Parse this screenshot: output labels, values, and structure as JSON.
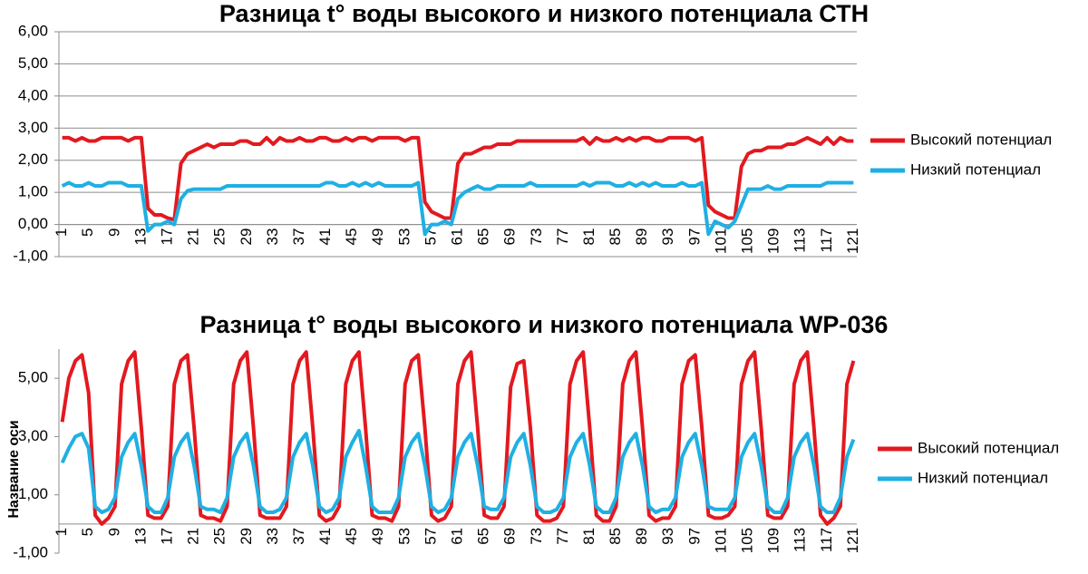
{
  "chart_data": [
    {
      "type": "line",
      "title": "Разница t° воды высокого и низкого потенциала СТН",
      "categories": [
        "1",
        null,
        null,
        null,
        "5",
        null,
        null,
        null,
        "9",
        null,
        null,
        null,
        "13",
        null,
        null,
        null,
        "17",
        null,
        null,
        null,
        "21",
        null,
        null,
        null,
        "25",
        null,
        null,
        null,
        "29",
        null,
        null,
        null,
        "33",
        null,
        null,
        null,
        "37",
        null,
        null,
        null,
        "41",
        null,
        null,
        null,
        "45",
        null,
        null,
        null,
        "49",
        null,
        null,
        null,
        "53",
        null,
        null,
        null,
        "57",
        null,
        null,
        null,
        "61",
        null,
        null,
        null,
        "65",
        null,
        null,
        null,
        "69",
        null,
        null,
        null,
        "73",
        null,
        null,
        null,
        "77",
        null,
        null,
        null,
        "81",
        null,
        null,
        null,
        "85",
        null,
        null,
        null,
        "89",
        null,
        null,
        null,
        "93",
        null,
        null,
        null,
        "97",
        null,
        null,
        null,
        "101",
        null,
        null,
        null,
        "105",
        null,
        null,
        null,
        "109",
        null,
        null,
        null,
        "113",
        null,
        null,
        null,
        "117",
        null,
        null,
        null,
        "121"
      ],
      "series": [
        {
          "name": "Высокий потенциал",
          "color": "#e3191f",
          "values": [
            2.7,
            2.7,
            2.6,
            2.7,
            2.6,
            2.6,
            2.7,
            2.7,
            2.7,
            2.7,
            2.6,
            2.7,
            2.7,
            0.5,
            0.3,
            0.3,
            0.2,
            0.15,
            1.9,
            2.2,
            2.3,
            2.4,
            2.5,
            2.4,
            2.5,
            2.5,
            2.5,
            2.6,
            2.6,
            2.5,
            2.5,
            2.7,
            2.5,
            2.7,
            2.6,
            2.6,
            2.7,
            2.6,
            2.6,
            2.7,
            2.7,
            2.6,
            2.6,
            2.7,
            2.6,
            2.7,
            2.7,
            2.6,
            2.7,
            2.7,
            2.7,
            2.7,
            2.6,
            2.7,
            2.7,
            0.7,
            0.4,
            0.3,
            0.2,
            0.2,
            1.9,
            2.2,
            2.2,
            2.3,
            2.4,
            2.4,
            2.5,
            2.5,
            2.5,
            2.6,
            2.6,
            2.6,
            2.6,
            2.6,
            2.6,
            2.6,
            2.6,
            2.6,
            2.6,
            2.7,
            2.5,
            2.7,
            2.6,
            2.6,
            2.7,
            2.6,
            2.7,
            2.6,
            2.7,
            2.7,
            2.6,
            2.6,
            2.7,
            2.7,
            2.7,
            2.7,
            2.6,
            2.7,
            0.6,
            0.4,
            0.3,
            0.2,
            0.2,
            1.8,
            2.2,
            2.3,
            2.3,
            2.4,
            2.4,
            2.4,
            2.5,
            2.5,
            2.6,
            2.7,
            2.6,
            2.5,
            2.7,
            2.5,
            2.7,
            2.6,
            2.6
          ]
        },
        {
          "name": "Низкий потенциал",
          "color": "#1fb0e3",
          "values": [
            1.2,
            1.3,
            1.2,
            1.2,
            1.3,
            1.2,
            1.2,
            1.3,
            1.3,
            1.3,
            1.2,
            1.2,
            1.2,
            -0.2,
            0.0,
            0.0,
            0.1,
            0.0,
            0.8,
            1.05,
            1.1,
            1.1,
            1.1,
            1.1,
            1.1,
            1.2,
            1.2,
            1.2,
            1.2,
            1.2,
            1.2,
            1.2,
            1.2,
            1.2,
            1.2,
            1.2,
            1.2,
            1.2,
            1.2,
            1.2,
            1.3,
            1.3,
            1.2,
            1.2,
            1.3,
            1.2,
            1.3,
            1.2,
            1.3,
            1.2,
            1.2,
            1.2,
            1.2,
            1.2,
            1.3,
            -0.3,
            0.0,
            0.0,
            0.1,
            0.0,
            0.8,
            1.0,
            1.1,
            1.2,
            1.1,
            1.1,
            1.2,
            1.2,
            1.2,
            1.2,
            1.2,
            1.3,
            1.2,
            1.2,
            1.2,
            1.2,
            1.2,
            1.2,
            1.2,
            1.3,
            1.2,
            1.3,
            1.3,
            1.3,
            1.2,
            1.2,
            1.3,
            1.2,
            1.3,
            1.2,
            1.3,
            1.2,
            1.2,
            1.2,
            1.3,
            1.2,
            1.2,
            1.3,
            -0.3,
            0.1,
            0.0,
            -0.1,
            0.1,
            0.6,
            1.1,
            1.1,
            1.1,
            1.2,
            1.1,
            1.1,
            1.2,
            1.2,
            1.2,
            1.2,
            1.2,
            1.2,
            1.3,
            1.3,
            1.3,
            1.3,
            1.3
          ]
        }
      ],
      "ylim": [
        -1,
        6
      ],
      "yticks": [
        {
          "value": -1,
          "label": "-1,00"
        },
        {
          "value": 0,
          "label": "0,00"
        },
        {
          "value": 1,
          "label": "1,00"
        },
        {
          "value": 2,
          "label": "2,00"
        },
        {
          "value": 3,
          "label": "3,00"
        },
        {
          "value": 4,
          "label": "4,00"
        },
        {
          "value": 5,
          "label": "5,00"
        },
        {
          "value": 6,
          "label": "6,00"
        }
      ],
      "grid": true,
      "legend": "right"
    },
    {
      "type": "line",
      "title": "Разница t° воды высокого и низкого потенциала WP-036",
      "y_label": "Название оси",
      "categories": [
        "1",
        null,
        null,
        null,
        "5",
        null,
        null,
        null,
        "9",
        null,
        null,
        null,
        "13",
        null,
        null,
        null,
        "17",
        null,
        null,
        null,
        "21",
        null,
        null,
        null,
        "25",
        null,
        null,
        null,
        "29",
        null,
        null,
        null,
        "33",
        null,
        null,
        null,
        "37",
        null,
        null,
        null,
        "41",
        null,
        null,
        null,
        "45",
        null,
        null,
        null,
        "49",
        null,
        null,
        null,
        "53",
        null,
        null,
        null,
        "57",
        null,
        null,
        null,
        "61",
        null,
        null,
        null,
        "65",
        null,
        null,
        null,
        "69",
        null,
        null,
        null,
        "73",
        null,
        null,
        null,
        "77",
        null,
        null,
        null,
        "81",
        null,
        null,
        null,
        "85",
        null,
        null,
        null,
        "89",
        null,
        null,
        null,
        "93",
        null,
        null,
        null,
        "97",
        null,
        null,
        null,
        "101",
        null,
        null,
        null,
        "105",
        null,
        null,
        null,
        "109",
        null,
        null,
        null,
        "113",
        null,
        null,
        null,
        "117",
        null,
        null,
        null,
        "121"
      ],
      "series": [
        {
          "name": "Высокий потенциал",
          "color": "#e3191f",
          "values": [
            3.5,
            5.0,
            5.6,
            5.8,
            4.5,
            0.3,
            0.0,
            0.2,
            0.6,
            4.8,
            5.6,
            5.9,
            3.3,
            0.3,
            0.2,
            0.2,
            0.6,
            4.8,
            5.6,
            5.8,
            3.3,
            0.3,
            0.2,
            0.2,
            0.1,
            0.6,
            4.8,
            5.6,
            5.9,
            3.3,
            0.3,
            0.2,
            0.2,
            0.2,
            0.6,
            4.8,
            5.6,
            5.9,
            3.3,
            0.3,
            0.1,
            0.2,
            0.6,
            4.8,
            5.6,
            5.9,
            3.3,
            0.3,
            0.2,
            0.2,
            0.1,
            0.6,
            4.8,
            5.6,
            5.8,
            3.3,
            0.3,
            0.1,
            0.2,
            0.6,
            4.8,
            5.6,
            5.9,
            3.3,
            0.3,
            0.2,
            0.2,
            0.6,
            4.7,
            5.5,
            5.6,
            3.3,
            0.3,
            0.1,
            0.1,
            0.2,
            0.6,
            4.8,
            5.6,
            5.9,
            3.3,
            0.3,
            0.1,
            0.1,
            0.6,
            4.8,
            5.6,
            5.9,
            3.3,
            0.3,
            0.1,
            0.2,
            0.2,
            0.6,
            4.8,
            5.6,
            5.8,
            3.3,
            0.3,
            0.2,
            0.2,
            0.3,
            0.6,
            4.8,
            5.6,
            5.9,
            3.3,
            0.3,
            0.2,
            0.2,
            0.6,
            4.8,
            5.6,
            5.9,
            3.3,
            0.3,
            0.0,
            0.2,
            0.6,
            4.8,
            5.6
          ]
        },
        {
          "name": "Низкий потенциал",
          "color": "#1fb0e3",
          "values": [
            2.1,
            2.6,
            3.0,
            3.1,
            2.6,
            0.6,
            0.4,
            0.5,
            0.9,
            2.3,
            2.8,
            3.1,
            2.0,
            0.6,
            0.4,
            0.4,
            0.9,
            2.3,
            2.8,
            3.1,
            2.0,
            0.6,
            0.5,
            0.5,
            0.4,
            0.9,
            2.3,
            2.8,
            3.1,
            2.0,
            0.6,
            0.4,
            0.4,
            0.5,
            0.9,
            2.3,
            2.8,
            3.1,
            2.0,
            0.6,
            0.4,
            0.5,
            0.9,
            2.3,
            2.8,
            3.2,
            2.0,
            0.6,
            0.4,
            0.4,
            0.4,
            0.9,
            2.3,
            2.8,
            3.1,
            2.0,
            0.6,
            0.4,
            0.5,
            0.9,
            2.3,
            2.8,
            3.1,
            2.0,
            0.6,
            0.5,
            0.5,
            0.9,
            2.3,
            2.8,
            3.1,
            2.0,
            0.6,
            0.4,
            0.4,
            0.5,
            0.9,
            2.3,
            2.8,
            3.1,
            2.0,
            0.6,
            0.4,
            0.4,
            0.9,
            2.3,
            2.8,
            3.1,
            2.0,
            0.6,
            0.4,
            0.5,
            0.5,
            0.9,
            2.3,
            2.8,
            3.1,
            2.0,
            0.6,
            0.5,
            0.5,
            0.5,
            0.9,
            2.3,
            2.8,
            3.1,
            2.0,
            0.6,
            0.4,
            0.4,
            0.9,
            2.3,
            2.8,
            3.1,
            2.0,
            0.6,
            0.4,
            0.4,
            0.9,
            2.3,
            2.9
          ]
        }
      ],
      "ylim": [
        -1,
        6
      ],
      "yticks": [
        {
          "value": -1,
          "label": "-1,00"
        },
        {
          "value": 1,
          "label": "1,00"
        },
        {
          "value": 3,
          "label": "3,00"
        },
        {
          "value": 5,
          "label": "5,00"
        }
      ],
      "grid": false,
      "legend": "right"
    }
  ]
}
